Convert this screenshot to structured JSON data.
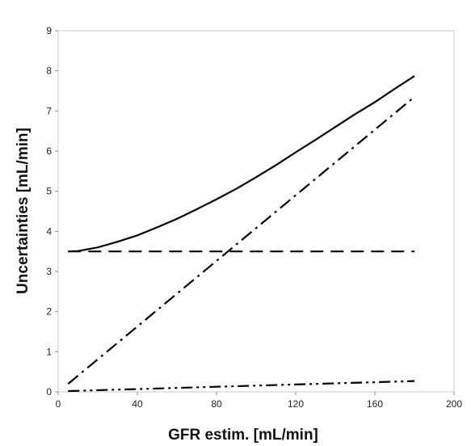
{
  "chart_data": {
    "type": "line",
    "title": "",
    "xlabel": "GFR estim. [mL/min]",
    "ylabel": "Uncertainties [mL/min]",
    "xlim": [
      0,
      200
    ],
    "ylim": [
      0,
      9
    ],
    "xticks": [
      0,
      40,
      80,
      120,
      160,
      200
    ],
    "yticks": [
      0,
      1,
      2,
      3,
      4,
      5,
      6,
      7,
      8,
      9
    ],
    "grid": false,
    "legend": "none",
    "series": [
      {
        "style": "solid",
        "color": "#000000",
        "points": [
          [
            5,
            3.5
          ],
          [
            10,
            3.51
          ],
          [
            20,
            3.6
          ],
          [
            30,
            3.74
          ],
          [
            40,
            3.9
          ],
          [
            50,
            4.1
          ],
          [
            60,
            4.31
          ],
          [
            70,
            4.55
          ],
          [
            80,
            4.8
          ],
          [
            90,
            5.06
          ],
          [
            100,
            5.35
          ],
          [
            110,
            5.65
          ],
          [
            120,
            5.97
          ],
          [
            130,
            6.28
          ],
          [
            140,
            6.6
          ],
          [
            150,
            6.92
          ],
          [
            160,
            7.22
          ],
          [
            170,
            7.55
          ],
          [
            180,
            7.87
          ]
        ]
      },
      {
        "style": "dashed",
        "color": "#000000",
        "points": [
          [
            5,
            3.5
          ],
          [
            180,
            3.5
          ]
        ]
      },
      {
        "style": "dashdot",
        "color": "#000000",
        "points": [
          [
            5,
            0.2
          ],
          [
            180,
            7.35
          ]
        ]
      },
      {
        "style": "dashdotdot",
        "color": "#000000",
        "points": [
          [
            5,
            0.02
          ],
          [
            180,
            0.27
          ]
        ]
      }
    ]
  }
}
